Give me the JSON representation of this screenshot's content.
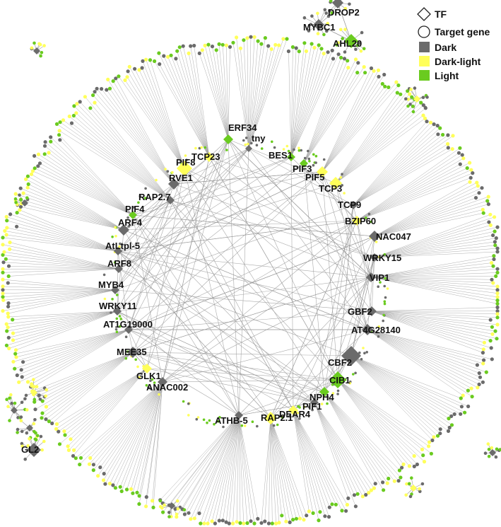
{
  "legend": {
    "items": [
      {
        "label": "TF",
        "symbol": "diamond",
        "color": "#ffffff"
      },
      {
        "label": "Target gene",
        "symbol": "circle",
        "color": "#ffffff"
      },
      {
        "label": "Dark",
        "symbol": "square",
        "color": "#6b6b6b"
      },
      {
        "label": "Dark-light",
        "symbol": "square",
        "color": "#ffff5a"
      },
      {
        "label": "Light",
        "symbol": "square",
        "color": "#6acb1f"
      }
    ]
  },
  "colors": {
    "dark": "#6b6b6b",
    "dark_light": "#ffff5a",
    "light": "#6acb1f",
    "edge": "#9a9a9a"
  },
  "tfs": [
    {
      "name": "ERF34",
      "class": "light"
    },
    {
      "name": "tny",
      "class": "dark"
    },
    {
      "name": "BES1",
      "class": "light"
    },
    {
      "name": "PIF3",
      "class": "light"
    },
    {
      "name": "PIF5",
      "class": "dark_light"
    },
    {
      "name": "TCP3",
      "class": "dark_light"
    },
    {
      "name": "TCP9",
      "class": "dark"
    },
    {
      "name": "BZIP60",
      "class": "dark_light"
    },
    {
      "name": "NAC047",
      "class": "dark"
    },
    {
      "name": "WRKY15",
      "class": "dark"
    },
    {
      "name": "VIP1",
      "class": "dark"
    },
    {
      "name": "GBF2",
      "class": "dark"
    },
    {
      "name": "AT4G28140",
      "class": "dark"
    },
    {
      "name": "CBF2",
      "class": "dark"
    },
    {
      "name": "CIB1",
      "class": "light"
    },
    {
      "name": "NPH4",
      "class": "light"
    },
    {
      "name": "PIF1",
      "class": "dark"
    },
    {
      "name": "DEAR4",
      "class": "dark_light"
    },
    {
      "name": "RAP2.1",
      "class": "dark_light"
    },
    {
      "name": "ATHB-5",
      "class": "dark"
    },
    {
      "name": "ANAC002",
      "class": "dark"
    },
    {
      "name": "GLK1",
      "class": "dark_light"
    },
    {
      "name": "MEE35",
      "class": "dark"
    },
    {
      "name": "AT1G19000",
      "class": "dark"
    },
    {
      "name": "WRKY11",
      "class": "dark"
    },
    {
      "name": "MYB4",
      "class": "dark"
    },
    {
      "name": "ARF8",
      "class": "dark"
    },
    {
      "name": "AtLtpl-5",
      "class": "dark"
    },
    {
      "name": "ARF4",
      "class": "dark"
    },
    {
      "name": "PIF4",
      "class": "light"
    },
    {
      "name": "RAP2.7",
      "class": "dark"
    },
    {
      "name": "RVE1",
      "class": "dark"
    },
    {
      "name": "PIF8",
      "class": "dark_light"
    },
    {
      "name": "TCP23",
      "class": "dark_light"
    }
  ],
  "outer_tfs": [
    {
      "name": "DROP2",
      "class": "dark"
    },
    {
      "name": "MYBC1",
      "class": "dark"
    },
    {
      "name": "AHL20",
      "class": "light"
    },
    {
      "name": "GL2",
      "class": "dark"
    }
  ]
}
